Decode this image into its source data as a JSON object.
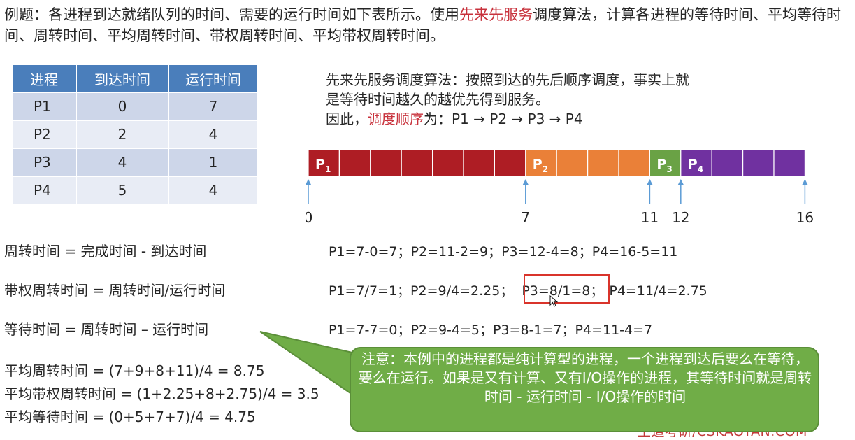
{
  "intro": {
    "part1": "例题：各进程到达就绪队列的时间、需要的运行时间如下表所示。使用",
    "highlight": "先来先服务",
    "part2": "调度算法，计算各进程的等待时间、平均等待时间、周转时间、平均周转时间、带权周转时间、平均带权周转时间。"
  },
  "table": {
    "headers": [
      "进程",
      "到达时间",
      "运行时间"
    ],
    "rows": [
      [
        "P1",
        "0",
        "7"
      ],
      [
        "P2",
        "2",
        "4"
      ],
      [
        "P3",
        "4",
        "1"
      ],
      [
        "P4",
        "5",
        "4"
      ]
    ]
  },
  "fcfs": {
    "line1": "先来先服务调度算法：按照到达的先后顺序调度，事实上就",
    "line2": "是等待时间越久的越优先得到服务。",
    "line3_prefix": "因此，",
    "line3_highlight": "调度顺序",
    "line3_suffix": "为：P1 → P2 → P3 → P4"
  },
  "gantt": {
    "segments": [
      {
        "label": "P",
        "sub": "1",
        "start": 0,
        "end": 7,
        "color": "#ae1d24"
      },
      {
        "label": "P",
        "sub": "2",
        "start": 7,
        "end": 11,
        "color": "#ea8038"
      },
      {
        "label": "P",
        "sub": "3",
        "start": 11,
        "end": 12,
        "color": "#6aa245"
      },
      {
        "label": "P",
        "sub": "4",
        "start": 12,
        "end": 16,
        "color": "#7031a0"
      }
    ],
    "ticks": [
      "0",
      "7",
      "11",
      "12",
      "16"
    ]
  },
  "formulas": {
    "turnaround": "周转时间 = 完成时间 - 到达时间",
    "weighted": "带权周转时间 = 周转时间/运行时间",
    "waiting": "等待时间 = 周转时间 – 运行时间"
  },
  "calcs": {
    "turnaround": "P1=7-0=7；P2=11-2=9；P3=12-4=8；P4=16-5=11",
    "weighted_a": "P1=7/7=1；P2=9/4=2.25；",
    "weighted_highlight": "P3=8/1=8；",
    "weighted_b": "P4=11/4=2.75",
    "waiting": "P1=7-7=0；P2=9-4=5；P3=8-1=7；P4=11-4=7"
  },
  "averages": {
    "turnaround": "平均周转时间 = (7+9+8+11)/4 = 8.75",
    "weighted": "平均带权周转时间 = (1+2.25+8+2.75)/4 = 3.5",
    "waiting": "平均等待时间 = (0+5+7+7)/4 = 4.75"
  },
  "callout": "注意：本例中的进程都是纯计算型的进程，一个进程到达后要么在等待，要么在运行。如果是又有计算、又有I/O操作的进程，其等待时间就是周转时间 - 运行时间 - I/O操作的时间",
  "watermark": "王道考研/CSKAOYAN.COM",
  "colors": {
    "accent_red": "#c8323c",
    "table_header": "#4a7ebb",
    "callout_green": "#70ad47"
  }
}
